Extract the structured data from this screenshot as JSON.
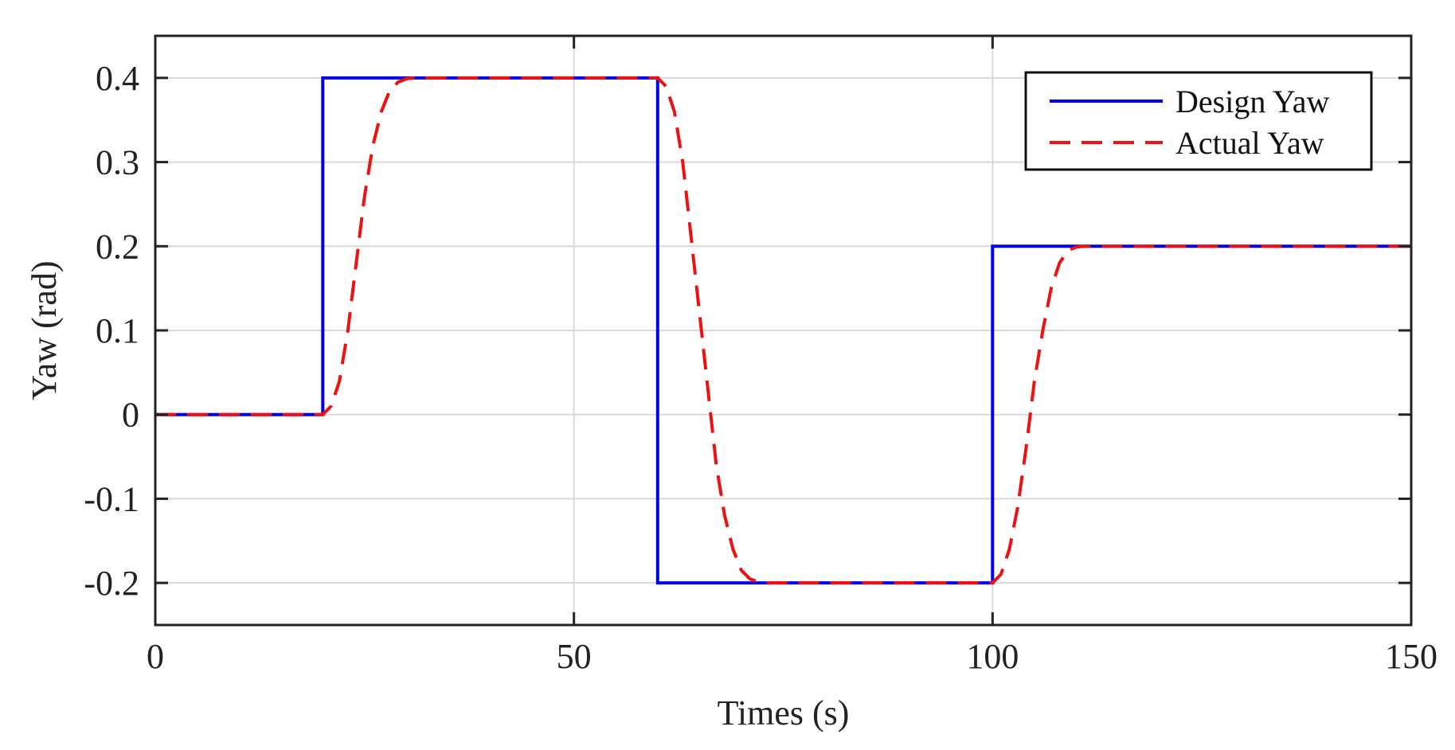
{
  "chart_data": {
    "type": "line",
    "title": "",
    "xlabel": "Times (s)",
    "ylabel": "Yaw (rad)",
    "xlim": [
      0,
      150
    ],
    "ylim": [
      -0.25,
      0.45
    ],
    "x_ticks": [
      0,
      50,
      100,
      150
    ],
    "x_tick_labels": [
      "0",
      "50",
      "100",
      "150"
    ],
    "y_ticks": [
      0.4,
      0.3,
      0.2,
      0.1,
      0,
      -0.1,
      -0.2
    ],
    "y_tick_labels": [
      "0.4",
      "0.3",
      "0.2",
      "0.1",
      "0",
      "-0.1",
      "-0.2"
    ],
    "grid": true,
    "legend_position": "top-right",
    "series": [
      {
        "name": "Design Yaw",
        "color": "#0000ee",
        "style": "solid",
        "x": [
          0,
          20,
          20,
          60,
          60,
          100,
          100,
          150
        ],
        "y": [
          0,
          0,
          0.4,
          0.4,
          -0.2,
          -0.2,
          0.2,
          0.2
        ]
      },
      {
        "name": "Actual Yaw",
        "color": "#ee1111",
        "style": "dashed",
        "x": [
          0,
          20,
          21,
          22,
          23,
          24,
          25,
          26,
          27,
          28,
          29,
          30,
          31,
          33,
          60,
          61,
          62,
          63,
          64,
          65,
          66,
          67,
          68,
          69,
          70,
          71,
          72,
          73,
          75,
          100,
          101,
          102,
          103,
          104,
          105,
          106,
          107,
          108,
          109,
          110,
          111,
          113,
          150
        ],
        "y": [
          0,
          0,
          0.01,
          0.04,
          0.1,
          0.18,
          0.26,
          0.32,
          0.36,
          0.385,
          0.395,
          0.399,
          0.4,
          0.4,
          0.4,
          0.39,
          0.36,
          0.3,
          0.21,
          0.12,
          0.03,
          -0.06,
          -0.12,
          -0.16,
          -0.185,
          -0.195,
          -0.199,
          -0.2,
          -0.2,
          -0.2,
          -0.19,
          -0.16,
          -0.11,
          -0.04,
          0.04,
          0.1,
          0.15,
          0.18,
          0.195,
          0.199,
          0.2,
          0.2,
          0.2
        ]
      }
    ]
  }
}
